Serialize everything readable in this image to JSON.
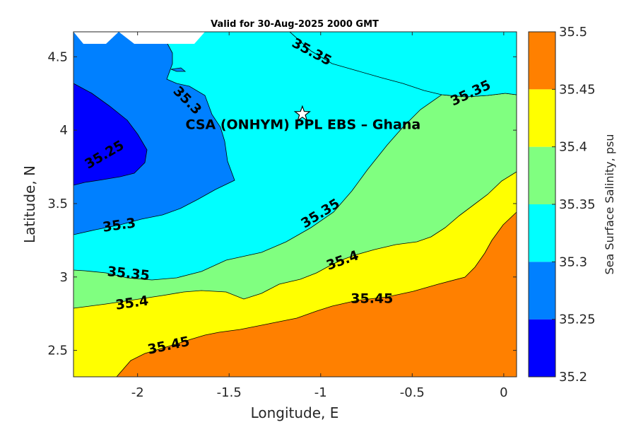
{
  "chart_data": {
    "type": "contour-map",
    "title": "Valid for 30-Aug-2025 2000 GMT",
    "xlabel": "Longitude, E",
    "ylabel": "Latitude, N",
    "xlim": [
      -2.35,
      0.07
    ],
    "ylim": [
      2.32,
      4.67
    ],
    "xticks": [
      -2,
      -1.5,
      -1,
      -0.5,
      0
    ],
    "xtick_labels": [
      "-2",
      "-1.5",
      "-1",
      "-0.5",
      "0"
    ],
    "yticks": [
      2.5,
      3,
      3.5,
      4,
      4.5
    ],
    "ytick_labels": [
      "2.5",
      "3",
      "3.5",
      "4",
      "4.5"
    ],
    "colorbar": {
      "label": "Sea Surface Salinity, psu",
      "tick_labels": [
        "35.2",
        "35.25",
        "35.3",
        "35.35",
        "35.4",
        "35.45",
        "35.5"
      ],
      "bands": [
        {
          "from": 35.2,
          "to": 35.25,
          "color": "#0000ff"
        },
        {
          "from": 35.25,
          "to": 35.3,
          "color": "#0080ff"
        },
        {
          "from": 35.3,
          "to": 35.35,
          "color": "#00ffff"
        },
        {
          "from": 35.35,
          "to": 35.4,
          "color": "#80ff80"
        },
        {
          "from": 35.4,
          "to": 35.45,
          "color": "#ffff00"
        },
        {
          "from": 35.45,
          "to": 35.5,
          "color": "#ff8000"
        }
      ]
    },
    "contour_labels": [
      {
        "text": "35.25",
        "lon": -2.18,
        "lat": 3.83
      },
      {
        "text": "35.3",
        "lon": -1.73,
        "lat": 4.2
      },
      {
        "text": "35.3",
        "lon": -2.1,
        "lat": 3.35
      },
      {
        "text": "35.35",
        "lon": -1.05,
        "lat": 4.53
      },
      {
        "text": "35.35",
        "lon": -0.18,
        "lat": 4.25
      },
      {
        "text": "35.35",
        "lon": -1.0,
        "lat": 3.43
      },
      {
        "text": "35.35",
        "lon": -2.05,
        "lat": 3.02
      },
      {
        "text": "35.4",
        "lon": -2.03,
        "lat": 2.82
      },
      {
        "text": "35.4",
        "lon": -0.88,
        "lat": 3.11
      },
      {
        "text": "35.45",
        "lon": -1.83,
        "lat": 2.53
      },
      {
        "text": "35.45",
        "lon": -0.72,
        "lat": 2.85
      }
    ],
    "marker": {
      "label": "CSA (ONHYM) PPL EBS  – Ghana",
      "lon": -1.1,
      "lat": 4.11,
      "symbol": "star"
    }
  }
}
